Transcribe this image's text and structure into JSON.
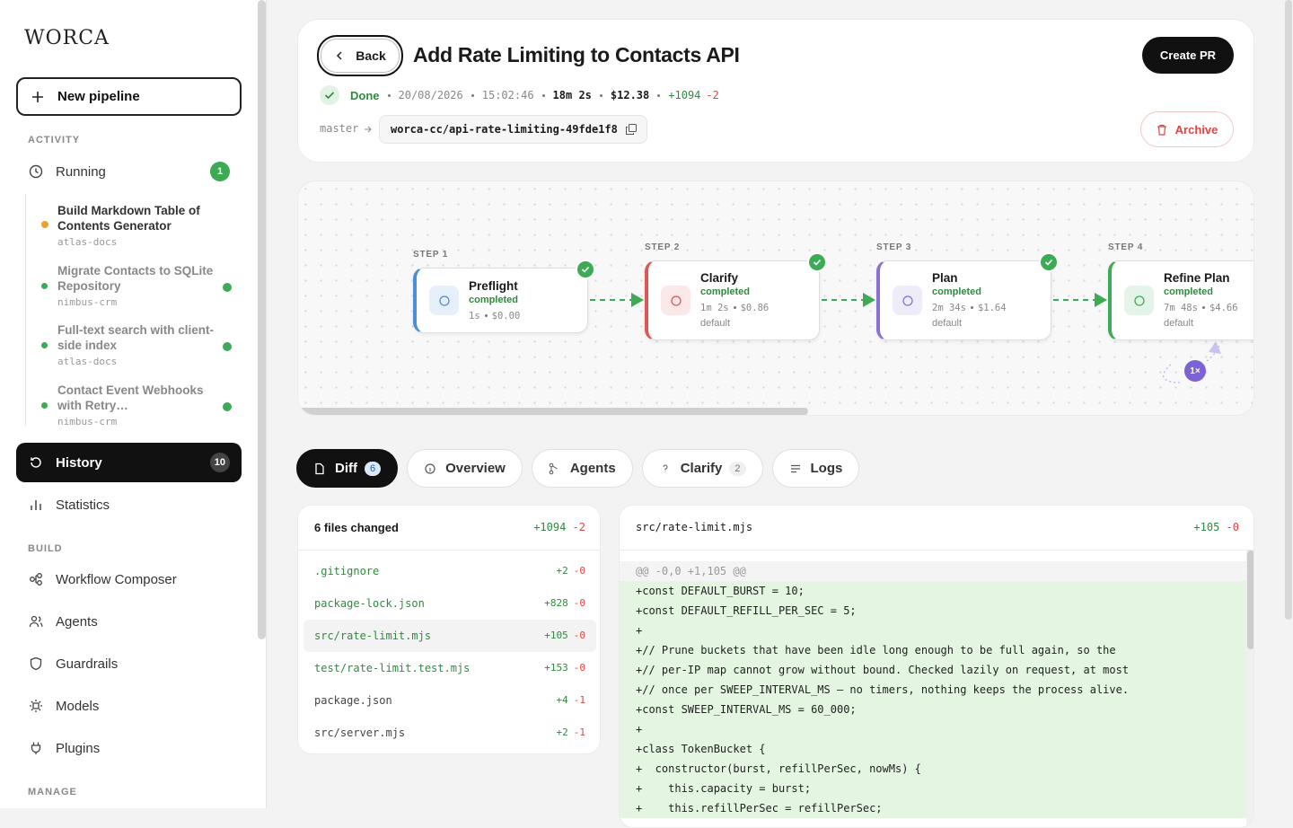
{
  "sidebar": {
    "logo": "WORCA",
    "new_pipeline": "New pipeline",
    "activity_label": "ACTIVITY",
    "running": {
      "label": "Running",
      "badge": "1"
    },
    "running_items": [
      {
        "title": "Build Markdown Table of Contents Generator",
        "repo": "atlas-docs",
        "color": "#f0a030",
        "active": true
      },
      {
        "title": "Migrate Contacts to SQLite Repository",
        "repo": "nimbus-crm",
        "color": "#3daa55",
        "active": false
      },
      {
        "title": "Full-text search with client-side index",
        "repo": "atlas-docs",
        "color": "#3daa55",
        "active": false
      },
      {
        "title": "Contact Event Webhooks with Retry…",
        "repo": "nimbus-crm",
        "color": "#3daa55",
        "active": false
      }
    ],
    "history": {
      "label": "History",
      "badge": "10"
    },
    "statistics": "Statistics",
    "build_label": "BUILD",
    "build_items": [
      "Workflow Composer",
      "Agents",
      "Guardrails",
      "Models",
      "Plugins"
    ],
    "manage_label": "MANAGE"
  },
  "header": {
    "back": "Back",
    "title": "Add Rate Limiting to Contacts API",
    "status": "Done",
    "date": "20/08/2026",
    "time": "15:02:46",
    "duration": "18m 2s",
    "cost": "$12.38",
    "added": "+1094",
    "removed": "-2",
    "base_branch": "master",
    "branch": "worca-cc/api-rate-limiting-49fde1f8",
    "create_pr": "Create PR",
    "archive": "Archive"
  },
  "pipeline": {
    "steps": [
      {
        "label": "STEP 1",
        "name": "Preflight",
        "status": "completed",
        "duration": "1s",
        "cost": "$0.00",
        "color": "#4a90d9"
      },
      {
        "label": "STEP 2",
        "name": "Clarify",
        "status": "completed",
        "duration": "1m 2s",
        "cost": "$0.86",
        "model": "default",
        "color": "#e05555"
      },
      {
        "label": "STEP 3",
        "name": "Plan",
        "status": "completed",
        "duration": "2m 34s",
        "cost": "$1.64",
        "model": "default",
        "color": "#8a6fd6"
      },
      {
        "label": "STEP 4",
        "name": "Refine Plan",
        "status": "completed",
        "duration": "7m 48s",
        "cost": "$4.66",
        "model": "default",
        "color": "#3daa55"
      }
    ],
    "loop_badge": "1×"
  },
  "tabs": [
    {
      "label": "Diff",
      "count": "6",
      "active": true
    },
    {
      "label": "Overview"
    },
    {
      "label": "Agents"
    },
    {
      "label": "Clarify",
      "count": "2"
    },
    {
      "label": "Logs"
    }
  ],
  "files": {
    "title": "6 files changed",
    "added": "+1094",
    "removed": "-2",
    "list": [
      {
        "name": ".gitignore",
        "added": "+2",
        "removed": "-0",
        "color": "#2e8b3e"
      },
      {
        "name": "package-lock.json",
        "added": "+828",
        "removed": "-0",
        "color": "#2e8b3e"
      },
      {
        "name": "src/rate-limit.mjs",
        "added": "+105",
        "removed": "-0",
        "color": "#2e8b3e",
        "selected": true
      },
      {
        "name": "test/rate-limit.test.mjs",
        "added": "+153",
        "removed": "-0",
        "color": "#2e8b3e"
      },
      {
        "name": "package.json",
        "added": "+4",
        "removed": "-1",
        "color": "#444444"
      },
      {
        "name": "src/server.mjs",
        "added": "+2",
        "removed": "-1",
        "color": "#444444"
      }
    ]
  },
  "diff": {
    "file": "src/rate-limit.mjs",
    "added": "+105",
    "removed": "-0",
    "hunk": "@@ -0,0 +1,105 @@",
    "lines": [
      "+const DEFAULT_BURST = 10;",
      "+const DEFAULT_REFILL_PER_SEC = 5;",
      "+",
      "+// Prune buckets that have been idle long enough to be full again, so the",
      "+// per-IP map cannot grow without bound. Checked lazily on request, at most",
      "+// once per SWEEP_INTERVAL_MS — no timers, nothing keeps the process alive.",
      "+const SWEEP_INTERVAL_MS = 60_000;",
      "+",
      "+class TokenBucket {",
      "+  constructor(burst, refillPerSec, nowMs) {",
      "+    this.capacity = burst;",
      "+    this.refillPerSec = refillPerSec;"
    ]
  }
}
